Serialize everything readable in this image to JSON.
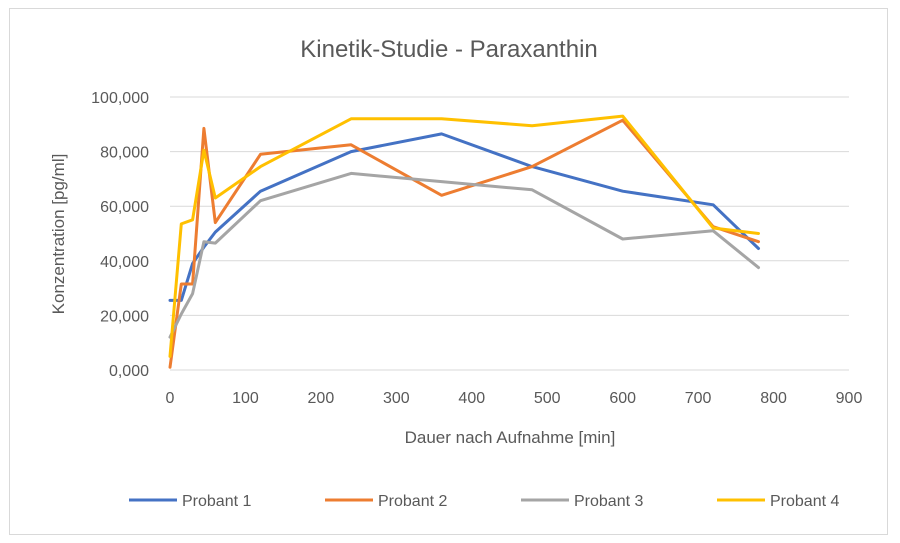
{
  "chart_data": {
    "type": "line",
    "title": "Kinetik-Studie - Paraxanthin",
    "xlabel": "Dauer nach Aufnahme [min]",
    "ylabel": "Konzentration  [pg/ml]",
    "xlim": [
      0,
      900
    ],
    "ylim": [
      0,
      100000
    ],
    "xticks": [
      "0",
      "100",
      "200",
      "300",
      "400",
      "500",
      "600",
      "700",
      "800",
      "900"
    ],
    "yticks": [
      "0,000",
      "20,000",
      "40,000",
      "60,000",
      "80,000",
      "100,000"
    ],
    "grid": "horizontal",
    "legend": "bottom",
    "series": [
      {
        "name": "Probant 1",
        "color": "#4472c4",
        "points": [
          [
            0,
            25500
          ],
          [
            15,
            25500
          ],
          [
            30,
            39000
          ],
          [
            45,
            45000
          ],
          [
            60,
            50500
          ],
          [
            120,
            65500
          ],
          [
            240,
            80000
          ],
          [
            360,
            86500
          ],
          [
            480,
            74500
          ],
          [
            600,
            65500
          ],
          [
            720,
            60500
          ],
          [
            780,
            44500
          ]
        ]
      },
      {
        "name": "Probant 2",
        "color": "#ed7d31",
        "points": [
          [
            0,
            1000
          ],
          [
            15,
            31500
          ],
          [
            30,
            31500
          ],
          [
            45,
            88500
          ],
          [
            60,
            54000
          ],
          [
            120,
            79000
          ],
          [
            240,
            82500
          ],
          [
            360,
            64000
          ],
          [
            480,
            74500
          ],
          [
            600,
            91500
          ],
          [
            720,
            52500
          ],
          [
            780,
            47000
          ]
        ]
      },
      {
        "name": "Probant 3",
        "color": "#a5a5a5",
        "points": [
          [
            0,
            12000
          ],
          [
            15,
            20500
          ],
          [
            30,
            28000
          ],
          [
            45,
            47000
          ],
          [
            60,
            46500
          ],
          [
            120,
            62000
          ],
          [
            240,
            72000
          ],
          [
            360,
            69000
          ],
          [
            480,
            66000
          ],
          [
            600,
            48000
          ],
          [
            720,
            51000
          ],
          [
            780,
            37500
          ]
        ]
      },
      {
        "name": "Probant 4",
        "color": "#ffc000",
        "points": [
          [
            0,
            5000
          ],
          [
            15,
            53500
          ],
          [
            30,
            55000
          ],
          [
            45,
            80500
          ],
          [
            60,
            63000
          ],
          [
            120,
            74500
          ],
          [
            240,
            92000
          ],
          [
            360,
            92000
          ],
          [
            480,
            89500
          ],
          [
            600,
            93000
          ],
          [
            720,
            52000
          ],
          [
            780,
            50000
          ]
        ]
      }
    ]
  }
}
